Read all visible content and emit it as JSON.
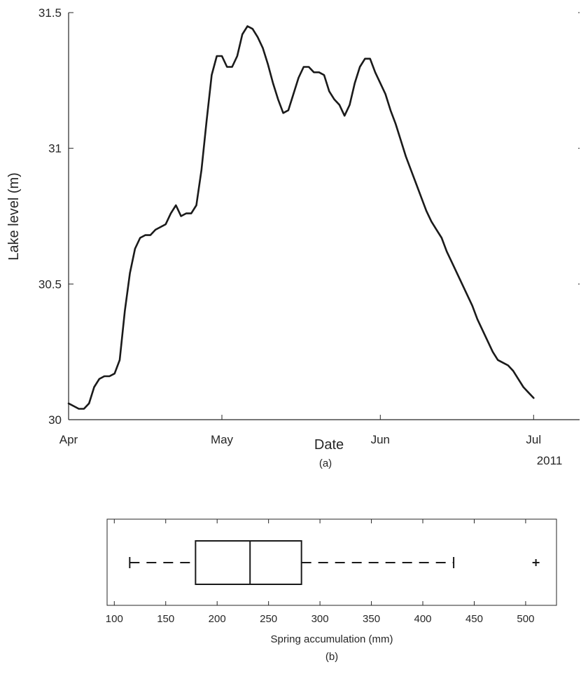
{
  "chart_data": [
    {
      "type": "line",
      "panel_label": "(a)",
      "xlabel": "Date",
      "ylabel": "Lake level (m)",
      "year_label": "2011",
      "x_unit": "date",
      "xlim": [
        "2011-04-01",
        "2011-07-10"
      ],
      "ylim": [
        30,
        31.5
      ],
      "x_ticks": [
        {
          "date": "2011-04-01",
          "label": "Apr"
        },
        {
          "date": "2011-05-01",
          "label": "May"
        },
        {
          "date": "2011-06-01",
          "label": "Jun"
        },
        {
          "date": "2011-07-01",
          "label": "Jul"
        }
      ],
      "y_ticks": [
        {
          "value": 30,
          "label": "30"
        },
        {
          "value": 30.5,
          "label": "30.5"
        },
        {
          "value": 31,
          "label": "31"
        },
        {
          "value": 31.5,
          "label": "31.5"
        }
      ],
      "grid": false,
      "line_color": "#1a1a1a",
      "series": [
        {
          "x": [
            "2011-04-01",
            "2011-04-02",
            "2011-04-03",
            "2011-04-04",
            "2011-04-05",
            "2011-04-06",
            "2011-04-07",
            "2011-04-08",
            "2011-04-09",
            "2011-04-10",
            "2011-04-11",
            "2011-04-12",
            "2011-04-13",
            "2011-04-14",
            "2011-04-15",
            "2011-04-16",
            "2011-04-17",
            "2011-04-18",
            "2011-04-19",
            "2011-04-20",
            "2011-04-21",
            "2011-04-22",
            "2011-04-23",
            "2011-04-24",
            "2011-04-25",
            "2011-04-26",
            "2011-04-27",
            "2011-04-28",
            "2011-04-29",
            "2011-04-30",
            "2011-05-01",
            "2011-05-02",
            "2011-05-03",
            "2011-05-04",
            "2011-05-05",
            "2011-05-06",
            "2011-05-07",
            "2011-05-08",
            "2011-05-09",
            "2011-05-10",
            "2011-05-11",
            "2011-05-12",
            "2011-05-13",
            "2011-05-14",
            "2011-05-15",
            "2011-05-16",
            "2011-05-17",
            "2011-05-18",
            "2011-05-19",
            "2011-05-20",
            "2011-05-21",
            "2011-05-22",
            "2011-05-23",
            "2011-05-24",
            "2011-05-25",
            "2011-05-26",
            "2011-05-27",
            "2011-05-28",
            "2011-05-29",
            "2011-05-30",
            "2011-05-31",
            "2011-06-01",
            "2011-06-02",
            "2011-06-03",
            "2011-06-04",
            "2011-06-05",
            "2011-06-06",
            "2011-06-07",
            "2011-06-08",
            "2011-06-09",
            "2011-06-10",
            "2011-06-11",
            "2011-06-12",
            "2011-06-13",
            "2011-06-14",
            "2011-06-15",
            "2011-06-16",
            "2011-06-17",
            "2011-06-18",
            "2011-06-19",
            "2011-06-20",
            "2011-06-21",
            "2011-06-22",
            "2011-06-23",
            "2011-06-24",
            "2011-06-25",
            "2011-06-26",
            "2011-06-27",
            "2011-06-28",
            "2011-06-29",
            "2011-06-30",
            "2011-07-01"
          ],
          "y": [
            30.06,
            30.05,
            30.04,
            30.04,
            30.06,
            30.12,
            30.15,
            30.16,
            30.16,
            30.17,
            30.22,
            30.4,
            30.54,
            30.63,
            30.67,
            30.68,
            30.68,
            30.7,
            30.71,
            30.72,
            30.76,
            30.79,
            30.75,
            30.76,
            30.76,
            30.79,
            30.92,
            31.1,
            31.27,
            31.34,
            31.34,
            31.3,
            31.3,
            31.34,
            31.42,
            31.45,
            31.44,
            31.41,
            31.37,
            31.31,
            31.24,
            31.18,
            31.13,
            31.14,
            31.2,
            31.26,
            31.3,
            31.3,
            31.28,
            31.28,
            31.27,
            31.21,
            31.18,
            31.16,
            31.12,
            31.16,
            31.24,
            31.3,
            31.33,
            31.33,
            31.28,
            31.24,
            31.2,
            31.14,
            31.09,
            31.03,
            30.97,
            30.92,
            30.87,
            30.82,
            30.77,
            30.73,
            30.7,
            30.67,
            30.62,
            30.58,
            30.54,
            30.5,
            30.46,
            30.42,
            30.37,
            30.33,
            30.29,
            30.25,
            30.22,
            30.21,
            30.2,
            30.18,
            30.15,
            30.12,
            30.1,
            30.08
          ]
        }
      ]
    },
    {
      "type": "box",
      "panel_label": "(b)",
      "xlabel": "Spring accumulation (mm)",
      "xlim": [
        93,
        530
      ],
      "x_ticks": [
        100,
        150,
        200,
        250,
        300,
        350,
        400,
        450,
        500
      ],
      "grid": false,
      "stats": {
        "whisker_low": 115,
        "q1": 179,
        "median": 232,
        "q3": 282,
        "whisker_high": 430,
        "outliers": [
          510
        ]
      }
    }
  ]
}
